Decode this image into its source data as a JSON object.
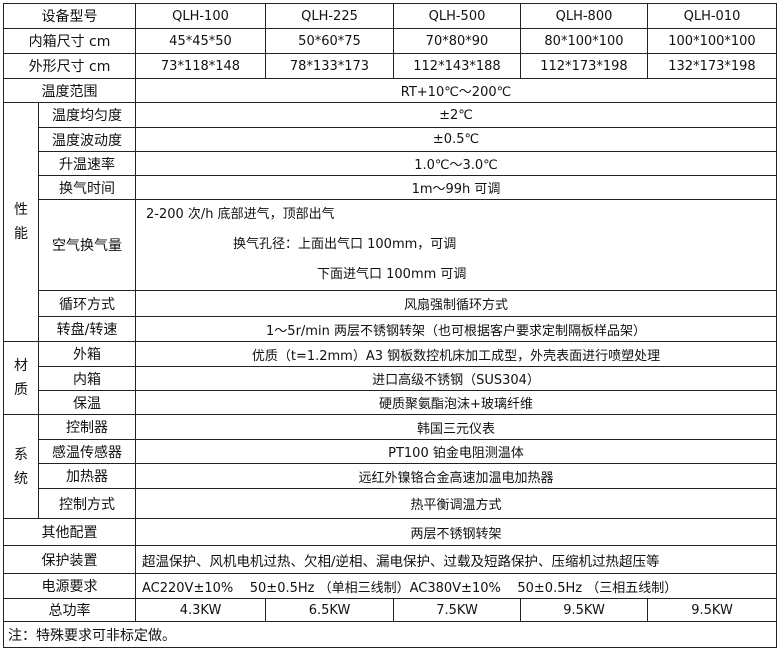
{
  "header": {
    "label": "设备型号",
    "models": [
      "QLH-100",
      "QLH-225",
      "QLH-500",
      "QLH-800",
      "QLH-010"
    ]
  },
  "inner_size": {
    "label": "内箱尺寸 cm",
    "values": [
      "45*45*50",
      "50*60*75",
      "70*80*90",
      "80*100*100",
      "100*100*100"
    ]
  },
  "outer_size": {
    "label": "外形尺寸 cm",
    "values": [
      "73*118*148",
      "78*133*173",
      "112*143*188",
      "112*173*198",
      "132*173*198"
    ]
  },
  "temp_range": {
    "label": "温度范围",
    "value": "RT+10℃～200℃"
  },
  "performance": {
    "section": "性能",
    "uniformity": {
      "label": "温度均匀度",
      "value": "±2℃"
    },
    "fluctuation": {
      "label": "温度波动度",
      "value": "±0.5℃"
    },
    "heating_rate": {
      "label": "升温速率",
      "value": "1.0℃～3.0℃"
    },
    "ventilation_time": {
      "label": "换气时间",
      "value": "1m～99h 可调"
    },
    "air_exchange": {
      "label": "空气换气量",
      "lines": [
        "2-200 次/h 底部进气，顶部出气",
        "换气孔径：上面出气口 100mm，可调",
        "下面进气口  100mm  可调"
      ]
    },
    "circulation": {
      "label": "循环方式",
      "value": "风扇强制循环方式"
    },
    "turntable": {
      "label": "转盘/转速",
      "value": "1～5r/min 两层不锈钢转架（也可根据客户要求定制隔板样品架）"
    }
  },
  "material": {
    "section": "材质",
    "outer": {
      "label": "外箱",
      "value": "优质（t=1.2mm）A3 钢板数控机床加工成型，外壳表面进行喷塑处理"
    },
    "inner": {
      "label": "内箱",
      "value": "进口高级不锈钢（SUS304）"
    },
    "insulation": {
      "label": "保温",
      "value": "硬质聚氨酯泡沫+玻璃纤维"
    }
  },
  "system": {
    "section": "系统",
    "controller": {
      "label": "控制器",
      "value": "韩国三元仪表"
    },
    "sensor": {
      "label": "感温传感器",
      "value": "PT100 铂金电阻测温体"
    },
    "heater": {
      "label": "加热器",
      "value": "远红外镍铬合金高速加温电加热器"
    },
    "control_mode": {
      "label": "控制方式",
      "value": "热平衡调温方式"
    }
  },
  "other_config": {
    "label": "其他配置",
    "value": "两层不锈钢转架"
  },
  "protection": {
    "label": "保护装置",
    "value": "超温保护、风机电机过热、欠相/逆相、漏电保护、过载及短路保护、压缩机过热超压等"
  },
  "power_supply": {
    "label": "电源要求",
    "value": "AC220V±10%    50±0.5Hz （单相三线制）AC380V±10%    50±0.5Hz （三相五线制）"
  },
  "total_power": {
    "label": "总功率",
    "values": [
      "4.3KW",
      "6.5KW",
      "7.5KW",
      "9.5KW",
      "9.5KW"
    ]
  },
  "note": "注：特殊要求可非标定做。"
}
